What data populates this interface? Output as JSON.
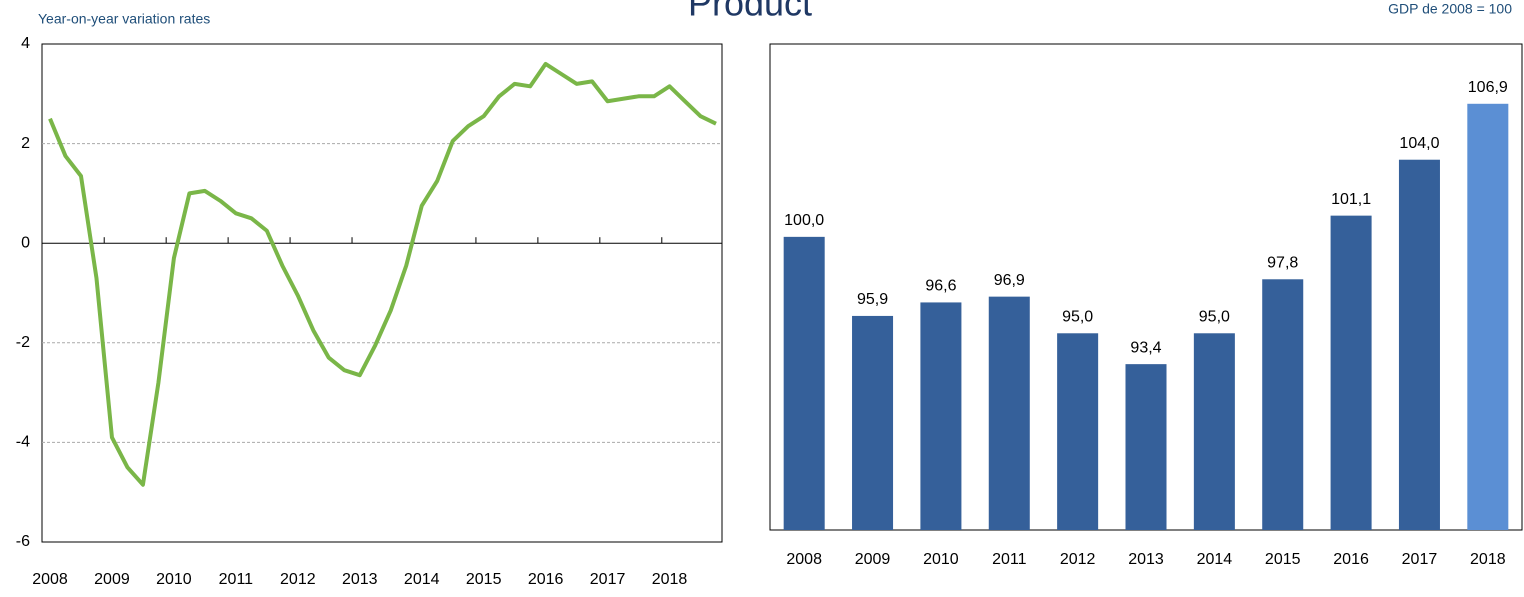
{
  "title": "Product",
  "chart_data": [
    {
      "type": "line",
      "subtitle": "Year-on-year variation rates",
      "color": "#7ab648",
      "categories": [
        "2008",
        null,
        null,
        null,
        "2009",
        null,
        null,
        null,
        "2010",
        null,
        null,
        null,
        "2011",
        null,
        null,
        null,
        "2012",
        null,
        null,
        null,
        "2013",
        null,
        null,
        null,
        "2014",
        null,
        null,
        null,
        "2015",
        null,
        null,
        null,
        "2016",
        null,
        null,
        null,
        "2017",
        null,
        null,
        null,
        "2018",
        null,
        null,
        null
      ],
      "values": [
        2.5,
        1.75,
        1.35,
        -0.7,
        -3.9,
        -4.5,
        -4.85,
        -2.8,
        -0.3,
        1.0,
        1.05,
        0.85,
        0.6,
        0.5,
        0.25,
        -0.45,
        -1.05,
        -1.75,
        -2.3,
        -2.55,
        -2.65,
        -2.05,
        -1.35,
        -0.45,
        0.75,
        1.25,
        2.05,
        2.35,
        2.55,
        2.95,
        3.2,
        3.15,
        3.6,
        3.4,
        3.2,
        3.25,
        2.85,
        2.9,
        2.95,
        2.95,
        3.15,
        2.85,
        2.55,
        2.4
      ],
      "ylim": [
        -6,
        4
      ],
      "yticks": [
        4,
        2,
        0,
        -2,
        -4,
        -6
      ],
      "grid": true
    },
    {
      "type": "bar",
      "subtitle": "GDP de 2008 = 100",
      "categories": [
        "2008",
        "2009",
        "2010",
        "2011",
        "2012",
        "2013",
        "2014",
        "2015",
        "2016",
        "2017",
        "2018"
      ],
      "values": [
        100.0,
        95.9,
        96.6,
        96.9,
        95.0,
        93.4,
        95.0,
        97.8,
        101.1,
        104.0,
        106.9
      ],
      "value_labels": [
        "100,0",
        "95,9",
        "96,6",
        "96,9",
        "95,0",
        "93,4",
        "95,0",
        "97,8",
        "101,1",
        "104,0",
        "106,9"
      ],
      "colors": [
        "#35609a",
        "#35609a",
        "#35609a",
        "#35609a",
        "#35609a",
        "#35609a",
        "#35609a",
        "#35609a",
        "#35609a",
        "#35609a",
        "#5b8fd4"
      ],
      "ylim": [
        84.8,
        110
      ]
    }
  ]
}
